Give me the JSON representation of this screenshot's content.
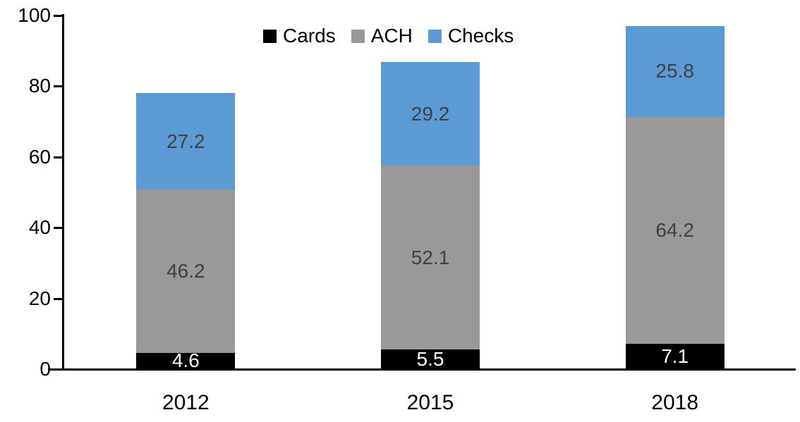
{
  "chart_data": {
    "type": "bar",
    "stacked": true,
    "title": "",
    "categories": [
      "2012",
      "2015",
      "2018"
    ],
    "series": [
      {
        "name": "Cards",
        "color": "#000000",
        "label_color": "#ffffff",
        "values": [
          4.6,
          5.5,
          7.1
        ]
      },
      {
        "name": "ACH",
        "color": "#999999",
        "label_color": "#404040",
        "values": [
          46.2,
          52.1,
          64.2
        ]
      },
      {
        "name": "Checks",
        "color": "#5B9BD5",
        "label_color": "#404040",
        "values": [
          27.2,
          29.2,
          25.8
        ]
      }
    ],
    "xlabel": "",
    "ylabel": "",
    "ylim": [
      0,
      100
    ],
    "yticks": [
      0,
      20,
      40,
      60,
      80,
      100
    ],
    "grid": false,
    "legend_position": "top-center"
  },
  "colors": {
    "axis": "#000000",
    "background": "#ffffff"
  }
}
